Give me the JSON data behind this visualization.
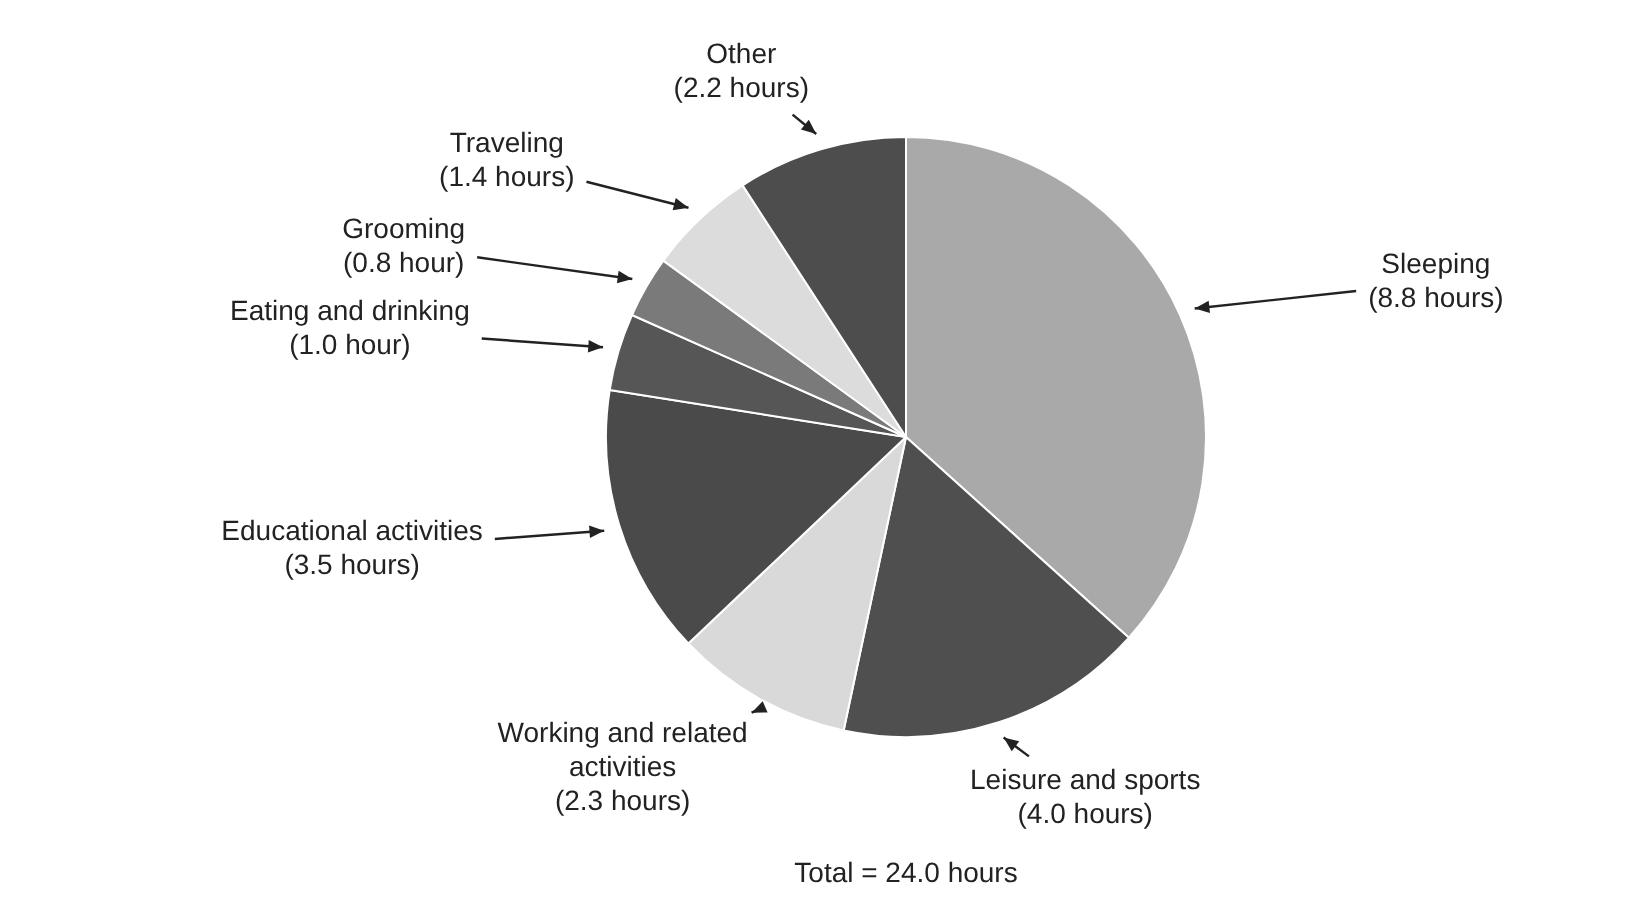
{
  "chart_data": {
    "type": "pie",
    "categories": [
      "Sleeping",
      "Leisure and sports",
      "Working and related activities",
      "Educational activities",
      "Eating and drinking",
      "Grooming",
      "Traveling",
      "Other"
    ],
    "values": [
      8.8,
      4.0,
      2.3,
      3.5,
      1.0,
      0.8,
      1.4,
      2.2
    ],
    "value_labels": [
      "(8.8 hours)",
      "(4.0 hours)",
      "(2.3 hours)",
      "(3.5 hours)",
      "(1.0 hour)",
      "(0.8 hour)",
      "(1.4 hours)",
      "(2.2 hours)"
    ],
    "colors": [
      "#a9a9a9",
      "#4f4f4f",
      "#d9d9d9",
      "#4a4a4a",
      "#565656",
      "#7a7a7a",
      "#dcdcdc",
      "#4d4d4d"
    ],
    "annotations": [
      "Total = 24.0 hours"
    ],
    "legend": false
  }
}
